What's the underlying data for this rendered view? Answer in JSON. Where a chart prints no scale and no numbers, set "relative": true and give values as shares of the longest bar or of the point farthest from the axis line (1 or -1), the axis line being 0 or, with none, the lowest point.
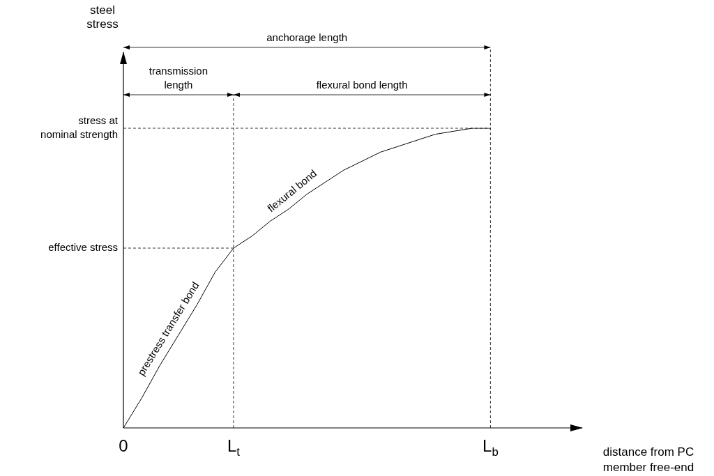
{
  "chart_data": {
    "type": "line",
    "relative": true,
    "xlabel": "distance from PC member free-end",
    "categories": [
      "0",
      null,
      null,
      null,
      null,
      null,
      "L$_{t}$",
      null,
      null,
      null,
      null,
      null,
      null,
      null,
      null,
      null,
      null,
      null,
      null,
      null,
      "L$_{b}$",
      null,
      null,
      null,
      null,
      null
    ],
    "series": [
      {
        "color": "#000000",
        "values": [
          0,
          0.1,
          0.21,
          0.31,
          0.41,
          0.52,
          0.6,
          0.64,
          0.69,
          0.73,
          0.78,
          0.82,
          0.86,
          0.89,
          0.92,
          0.94,
          0.96,
          0.98,
          0.99,
          1,
          1,
          null,
          null,
          null,
          null,
          null
        ]
      }
    ],
    "annotations": [
      "anchorage length",
      "transmission length",
      "flexural bond length",
      "flexural bond",
      "prestress transfer bond",
      "effective stress",
      "stress at nominal strength",
      "steel stress"
    ],
    "marker": "none",
    "line_style": "solid"
  }
}
